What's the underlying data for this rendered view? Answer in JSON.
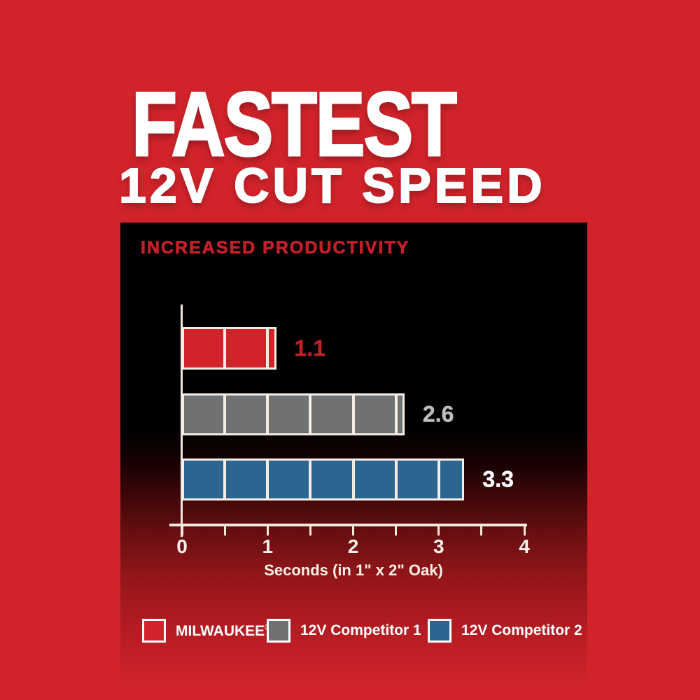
{
  "headline": {
    "line1": "FASTEST",
    "line2": "12V CUT SPEED"
  },
  "chart_data": {
    "type": "bar",
    "orientation": "horizontal",
    "title": "INCREASED PRODUCTIVITY",
    "xlabel": "Seconds (in 1\" x 2\" Oak)",
    "xlim": [
      0,
      4
    ],
    "xticks": [
      0,
      1,
      2,
      3,
      4
    ],
    "minor_tick_step": 0.5,
    "segment_step": 0.5,
    "grid": false,
    "legend_position": "bottom",
    "categories": [
      "MILWAUKEE®",
      "12V Competitor 1",
      "12V Competitor 2"
    ],
    "values": [
      1.1,
      2.6,
      3.3
    ],
    "series": [
      {
        "name": "MILWAUKEE®",
        "value": 1.1,
        "value_label": "1.1",
        "color": "#d2232a",
        "label_color": "#bf2026"
      },
      {
        "name": "12V Competitor 1",
        "value": 2.6,
        "value_label": "2.6",
        "color": "#6f7173",
        "label_color": "#bbbcbe"
      },
      {
        "name": "12V Competitor 2",
        "value": 3.3,
        "value_label": "3.3",
        "color": "#2b6590",
        "label_color": "#ffffff"
      }
    ]
  },
  "colors": {
    "background": "#d2232a",
    "panel_top": "#000000",
    "axis": "#f2e8dd",
    "title_red": "#c31f28",
    "text": "#ffffff"
  }
}
